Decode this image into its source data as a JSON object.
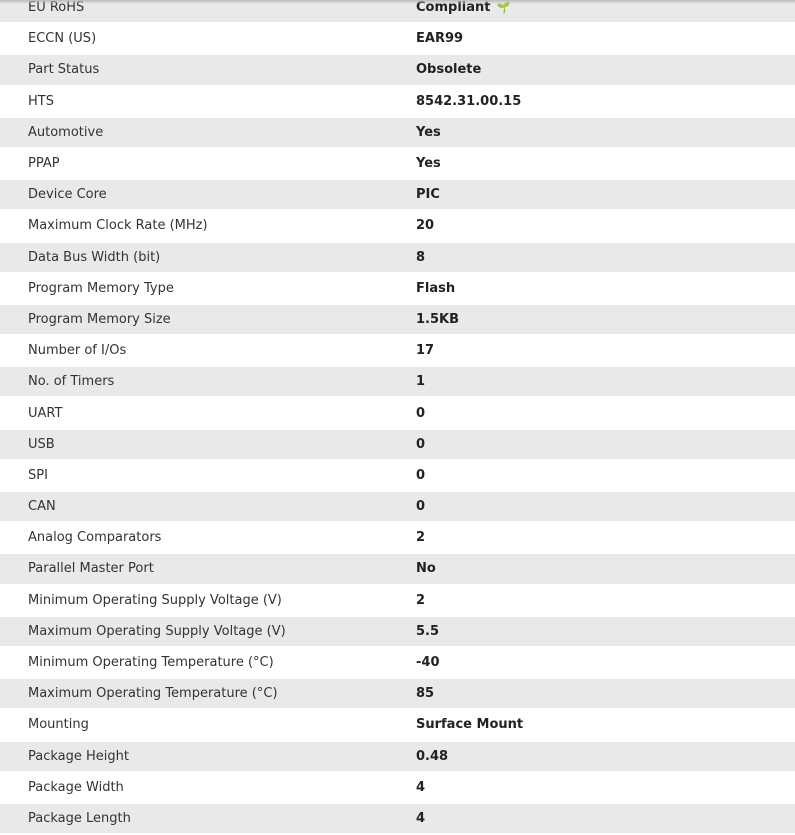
{
  "rows": [
    {
      "label": "EU RoHS",
      "value": "Compliant",
      "icon": "leaf-icon"
    },
    {
      "label": "ECCN (US)",
      "value": "EAR99"
    },
    {
      "label": "Part Status",
      "value": "Obsolete"
    },
    {
      "label": "HTS",
      "value": "8542.31.00.15"
    },
    {
      "label": "Automotive",
      "value": "Yes"
    },
    {
      "label": "PPAP",
      "value": "Yes"
    },
    {
      "label": "Device Core",
      "value": "PIC"
    },
    {
      "label": "Maximum Clock Rate (MHz)",
      "value": "20"
    },
    {
      "label": "Data Bus Width (bit)",
      "value": "8"
    },
    {
      "label": "Program Memory Type",
      "value": "Flash"
    },
    {
      "label": "Program Memory Size",
      "value": "1.5KB"
    },
    {
      "label": "Number of I/Os",
      "value": "17"
    },
    {
      "label": "No. of Timers",
      "value": "1"
    },
    {
      "label": "UART",
      "value": "0"
    },
    {
      "label": "USB",
      "value": "0"
    },
    {
      "label": "SPI",
      "value": "0"
    },
    {
      "label": "CAN",
      "value": "0"
    },
    {
      "label": "Analog Comparators",
      "value": "2"
    },
    {
      "label": "Parallel Master Port",
      "value": "No"
    },
    {
      "label": "Minimum Operating Supply Voltage (V)",
      "value": "2"
    },
    {
      "label": "Maximum Operating Supply Voltage (V)",
      "value": "5.5"
    },
    {
      "label": "Minimum Operating Temperature (°C)",
      "value": "-40"
    },
    {
      "label": "Maximum Operating Temperature (°C)",
      "value": "85"
    },
    {
      "label": "Mounting",
      "value": "Surface Mount"
    },
    {
      "label": "Package Height",
      "value": "0.48"
    },
    {
      "label": "Package Width",
      "value": "4"
    },
    {
      "label": "Package Length",
      "value": "4"
    }
  ],
  "colors": {
    "stripe": "#e9e9e9",
    "leaf": "#2bb35a"
  }
}
